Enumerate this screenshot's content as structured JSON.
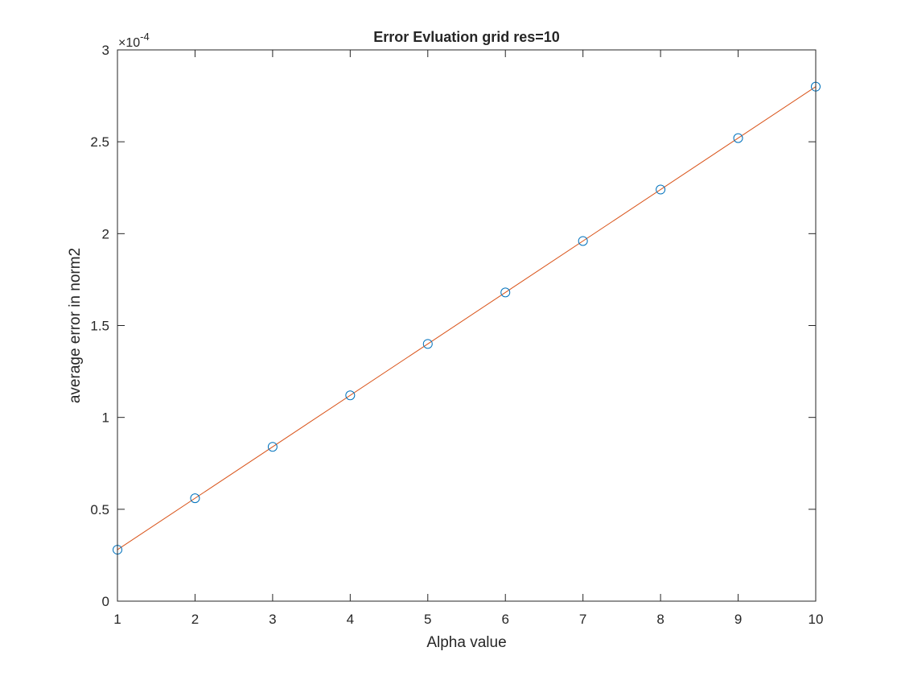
{
  "chart_data": {
    "type": "line",
    "title": "Error Evluation grid res=10",
    "xlabel": "Alpha value",
    "ylabel": "average error in norm2",
    "y_exponent_base": "×10",
    "y_exponent_power": "-4",
    "xlim": [
      1,
      10
    ],
    "ylim": [
      0,
      3
    ],
    "x_ticks": [
      1,
      2,
      3,
      4,
      5,
      6,
      7,
      8,
      9,
      10
    ],
    "x_tick_labels": [
      "1",
      "2",
      "3",
      "4",
      "5",
      "6",
      "7",
      "8",
      "9",
      "10"
    ],
    "y_ticks": [
      0,
      0.5,
      1,
      1.5,
      2,
      2.5,
      3
    ],
    "y_tick_labels": [
      "0",
      "0.5",
      "1",
      "1.5",
      "2",
      "2.5",
      "3"
    ],
    "grid": false,
    "series": [
      {
        "marker": "circle",
        "line": false,
        "color": "#0072bd",
        "x": [
          1,
          2,
          3,
          4,
          5,
          6,
          7,
          8,
          9,
          10
        ],
        "y": [
          0.28,
          0.56,
          0.84,
          1.12,
          1.4,
          1.68,
          1.96,
          2.24,
          2.52,
          2.8
        ]
      },
      {
        "marker": "none",
        "line": true,
        "color": "#d95319",
        "x": [
          1,
          10
        ],
        "y": [
          0.28,
          2.8
        ]
      }
    ]
  }
}
